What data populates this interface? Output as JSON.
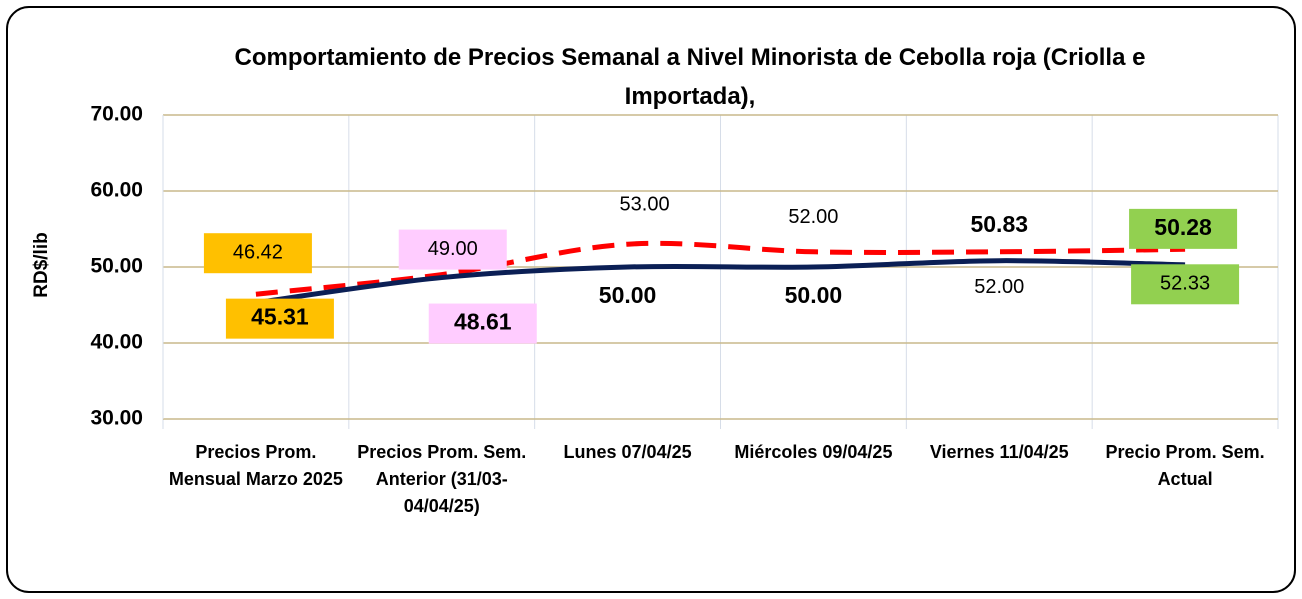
{
  "chart_data": {
    "type": "line",
    "title": "Comportamiento de Precios Semanal a Nivel Minorista de Cebolla roja (Criolla e Importada),",
    "y_label": "RD$/lib",
    "categories": [
      "Precios Prom. Mensual Marzo 2025",
      "Precios Prom. Sem. Anterior (31/03-04/04/25)",
      "Lunes 07/04/25",
      "Miércoles 09/04/25",
      "Viernes 11/04/25",
      "Precio Prom. Sem. Actual"
    ],
    "series": [
      {
        "color": "#0b1f55",
        "dash": false,
        "bold_labels": true,
        "values": [
          45.31,
          48.61,
          50.0,
          50.0,
          50.83,
          50.28
        ],
        "value_labels": [
          "45.31",
          "48.61",
          "50.00",
          "50.00",
          "50.83",
          "50.28"
        ]
      },
      {
        "color": "#ff0000",
        "dash": true,
        "bold_labels": false,
        "values": [
          46.42,
          49.0,
          53.0,
          52.0,
          52.0,
          52.33
        ],
        "value_labels": [
          "46.42",
          "49.00",
          "53.00",
          "52.00",
          "52.00",
          "52.33"
        ]
      }
    ],
    "label_colors": [
      "#ffc000",
      "#ffccff",
      null,
      null,
      null,
      "#92d050"
    ],
    "ylim": [
      30,
      70
    ],
    "yticks": [
      {
        "value": 30,
        "label": "30.00"
      },
      {
        "value": 40,
        "label": "40.00"
      },
      {
        "value": 50,
        "label": "50.00"
      },
      {
        "value": 60,
        "label": "60.00"
      },
      {
        "value": 70,
        "label": "70.00"
      }
    ],
    "grid": true
  }
}
